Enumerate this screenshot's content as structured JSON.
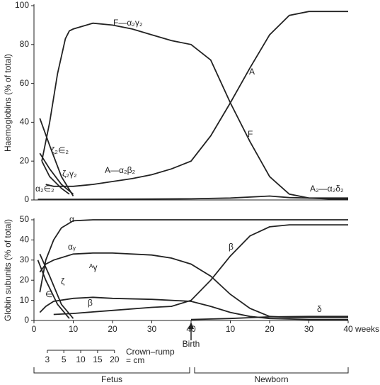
{
  "chart_data": [
    {
      "type": "line",
      "ylabel": "Haemoglobins (% of total)",
      "xlim": [
        0,
        80
      ],
      "ylim": [
        0,
        100
      ],
      "yticks": [
        0,
        20,
        40,
        60,
        80,
        100
      ],
      "series": [
        {
          "name": "F—α₂γ₂",
          "color": "#222",
          "x": [
            2,
            4,
            6,
            8,
            9,
            10,
            15,
            20,
            25,
            30,
            35,
            40,
            45,
            50,
            55,
            60,
            65,
            70,
            75,
            80
          ],
          "values": [
            20,
            40,
            65,
            83,
            87,
            88,
            91,
            90,
            88,
            85,
            82,
            80,
            72,
            50,
            30,
            12,
            3,
            1,
            0.5,
            0.5
          ]
        },
        {
          "name": "A—α₂β₂",
          "color": "#222",
          "x": [
            3,
            5,
            10,
            15,
            20,
            25,
            30,
            35,
            40,
            45,
            50,
            55,
            60,
            65,
            70,
            75,
            80
          ],
          "values": [
            8,
            7,
            7,
            8,
            9.5,
            11,
            13,
            16,
            20,
            33,
            50,
            68,
            85,
            95,
            97,
            97,
            97
          ]
        },
        {
          "name": "ζ₂∈₂",
          "color": "#222",
          "x": [
            1.5,
            4,
            7,
            10
          ],
          "values": [
            42,
            28,
            12,
            2
          ]
        },
        {
          "name": "ζ₂γ₂",
          "color": "#222",
          "x": [
            1.5,
            4,
            7,
            10
          ],
          "values": [
            24,
            16,
            8,
            3
          ]
        },
        {
          "name": "α₂∈₂",
          "color": "#222",
          "x": [
            2,
            4,
            7,
            9
          ],
          "values": [
            20,
            12,
            6,
            3
          ]
        },
        {
          "name": "A₂—α₂δ₂",
          "color": "#222",
          "x": [
            1,
            10,
            20,
            30,
            40,
            50,
            60,
            65,
            70,
            80
          ],
          "values": [
            0.3,
            0.3,
            0.4,
            0.5,
            0.6,
            1,
            2,
            1.2,
            1,
            1
          ]
        }
      ],
      "annotations": [
        "A",
        "F"
      ]
    },
    {
      "type": "line",
      "ylabel": "Globin subunits  (% of total)",
      "xlim": [
        0,
        80
      ],
      "ylim": [
        0,
        50
      ],
      "yticks": [
        0,
        10,
        20,
        30,
        40,
        50
      ],
      "xticks": [
        0,
        10,
        20,
        30,
        40,
        {
          "value": 50,
          "label": "10"
        },
        {
          "value": 60,
          "label": "20"
        },
        {
          "value": 70,
          "label": "30"
        },
        {
          "value": 80,
          "label": "40"
        }
      ],
      "x_unit": "weeks",
      "series": [
        {
          "name": "α",
          "color": "#222",
          "x": [
            1.5,
            3,
            5,
            7,
            10,
            15,
            20,
            40,
            60,
            80
          ],
          "values": [
            14,
            30,
            40,
            46,
            49.5,
            50,
            50,
            50,
            50,
            50
          ]
        },
        {
          "name": "αᵧ",
          "color": "#222",
          "x": [
            1.5,
            3,
            5,
            10,
            15,
            20,
            30,
            35,
            40,
            45,
            50,
            55,
            60,
            65,
            70,
            80
          ],
          "values": [
            24,
            28,
            30,
            33,
            33.5,
            33.5,
            32.5,
            31,
            28,
            22,
            13,
            6,
            2,
            1.5,
            1.5,
            1.5
          ]
        },
        {
          "name": "β",
          "color": "#222",
          "x": [
            5,
            10,
            20,
            30,
            35,
            40,
            45,
            50,
            55,
            60,
            65,
            70,
            80
          ],
          "values": [
            3,
            3.5,
            5,
            6.5,
            7,
            10,
            20,
            32,
            42,
            46.5,
            47.5,
            47.5,
            47.5
          ]
        },
        {
          "name": "ᴬγ",
          "color": "#222",
          "x": [
            1.5,
            3,
            5,
            10,
            15,
            20,
            30,
            40,
            45,
            50,
            55,
            60,
            70,
            80
          ],
          "values": [
            4,
            7,
            9.5,
            11,
            11.5,
            11,
            10.5,
            9.5,
            7,
            4,
            2,
            1,
            0.5,
            0.5
          ]
        },
        {
          "name": "δ",
          "color": "#222",
          "x": [
            40,
            50,
            60,
            70,
            80
          ],
          "values": [
            0.5,
            1,
            1.8,
            2,
            2
          ]
        },
        {
          "name": "ζ",
          "color": "#222",
          "x": [
            1.5,
            4,
            7,
            10
          ],
          "values": [
            33,
            22,
            8,
            1
          ]
        },
        {
          "name": "∈",
          "color": "#222",
          "x": [
            1,
            3,
            6,
            9
          ],
          "values": [
            30,
            20,
            8,
            1
          ]
        }
      ],
      "annotations": [
        "β"
      ],
      "birth_label": "Birth",
      "periods": [
        "Fetus",
        "Newborn"
      ],
      "crown_rump": {
        "label": "Crown–rump",
        "unit": "= cm",
        "cm": [
          3,
          5,
          10,
          15,
          20
        ],
        "weeks": [
          3.4,
          7.6,
          11.9,
          16.2,
          20.5
        ]
      }
    }
  ]
}
